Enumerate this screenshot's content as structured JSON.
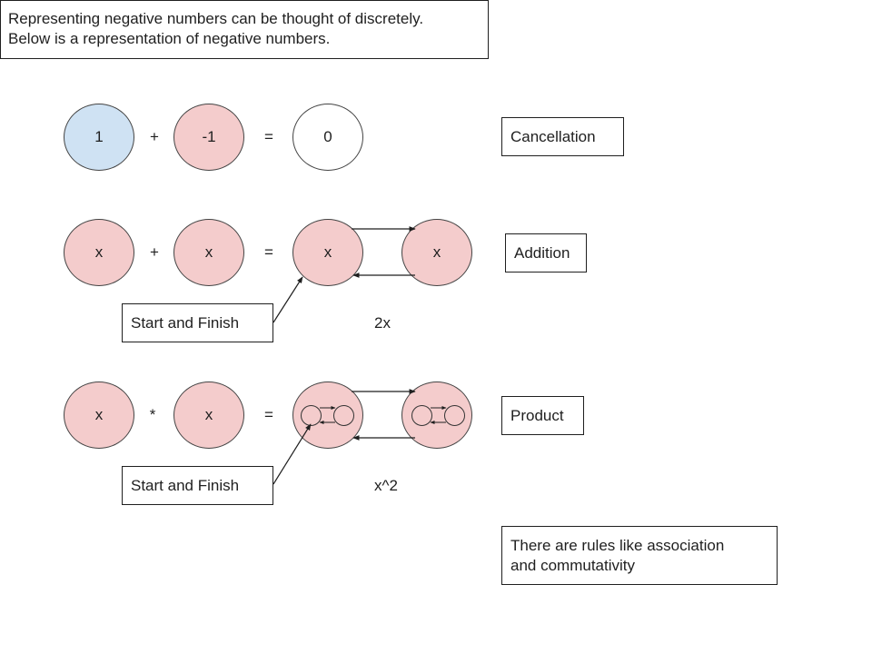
{
  "intro": {
    "line1": "Representing negative numbers can be thought of discretely.",
    "line2": "Below is a representation of negative numbers."
  },
  "row1": {
    "a": "1",
    "op1": "+",
    "b": "-1",
    "op2": "=",
    "result": "0",
    "label": "Cancellation",
    "colors": {
      "a": "#cfe2f3",
      "b": "#f4cccc",
      "result": "#ffffff"
    }
  },
  "row2": {
    "a": "x",
    "op1": "+",
    "b": "x",
    "op2": "=",
    "result_left": "x",
    "result_right": "x",
    "label": "Addition",
    "start_label": "Start and Finish",
    "caption": "2x"
  },
  "row3": {
    "a": "x",
    "op1": "*",
    "b": "x",
    "op2": "=",
    "label": "Product",
    "start_label": "Start and Finish",
    "caption": "x^2"
  },
  "note": {
    "line1": "There are rules like association",
    "line2": "and commutativity"
  }
}
